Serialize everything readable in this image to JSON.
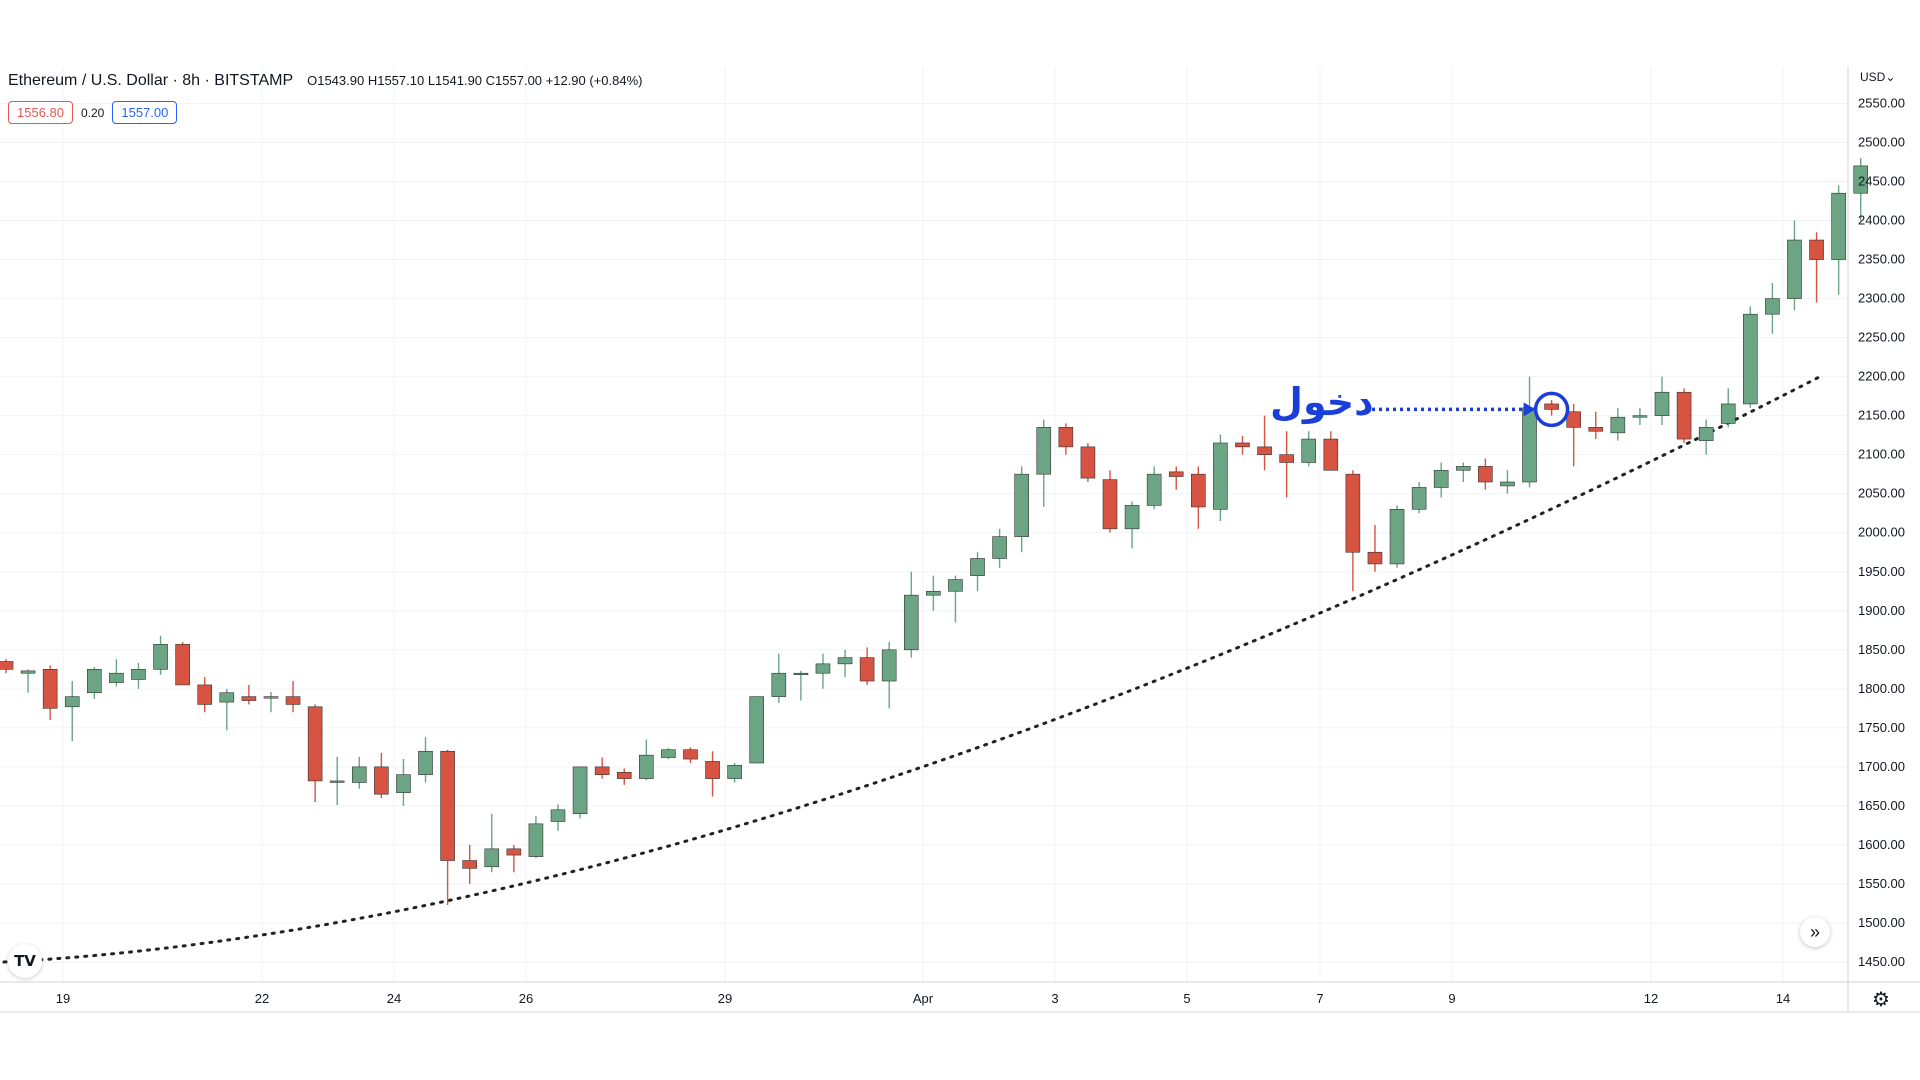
{
  "header": {
    "symbol": "Ethereum / U.S. Dollar · 8h · BITSTAMP",
    "ohlc": "O1543.90 H1557.10 L1541.90 C1557.00 +12.90 (+0.84%)",
    "bid": "1556.80",
    "spread": "0.20",
    "ask": "1557.00",
    "currency": "USD⌄"
  },
  "annotation": {
    "entry_label": "دخول"
  },
  "colors": {
    "up": "#6ba583",
    "down": "#d75442",
    "wick": "#5b5b5b",
    "grid": "#f0f3fa",
    "arrow": "#1a3fd9"
  },
  "icons": {
    "settings": "gear-icon",
    "scroll": "double-chevron-right-icon",
    "logo": "tradingview-logo"
  },
  "chart_data": {
    "type": "candlestick",
    "title": "Ethereum / U.S. Dollar · 8h · BITSTAMP",
    "ylim": [
      1425,
      2570
    ],
    "y_ticks": [
      1450,
      1500,
      1550,
      1600,
      1650,
      1700,
      1750,
      1800,
      1850,
      1900,
      1950,
      2000,
      2050,
      2100,
      2150,
      2200,
      2250,
      2300,
      2350,
      2400,
      2450,
      2500,
      2550
    ],
    "x_ticks": [
      "19",
      "22",
      "24",
      "26",
      "29",
      "Apr",
      "3",
      "5",
      "7",
      "9",
      "12",
      "14"
    ],
    "candles": [
      [
        1835,
        1838,
        1820,
        1825
      ],
      [
        1820,
        1825,
        1795,
        1823
      ],
      [
        1825,
        1830,
        1760,
        1775
      ],
      [
        1777,
        1810,
        1733,
        1790
      ],
      [
        1795,
        1828,
        1787,
        1825
      ],
      [
        1808,
        1838,
        1803,
        1820
      ],
      [
        1812,
        1833,
        1800,
        1825
      ],
      [
        1825,
        1868,
        1818,
        1857
      ],
      [
        1857,
        1860,
        1805,
        1805
      ],
      [
        1805,
        1815,
        1770,
        1780
      ],
      [
        1783,
        1800,
        1747,
        1795
      ],
      [
        1790,
        1805,
        1780,
        1785
      ],
      [
        1788,
        1796,
        1770,
        1790
      ],
      [
        1790,
        1810,
        1770,
        1780
      ],
      [
        1777,
        1780,
        1655,
        1682
      ],
      [
        1682,
        1713,
        1651,
        1682
      ],
      [
        1680,
        1713,
        1672,
        1700
      ],
      [
        1700,
        1718,
        1660,
        1665
      ],
      [
        1667,
        1710,
        1650,
        1690
      ],
      [
        1690,
        1738,
        1680,
        1720
      ],
      [
        1720,
        1722,
        1523,
        1580
      ],
      [
        1580,
        1600,
        1550,
        1570
      ],
      [
        1572,
        1640,
        1565,
        1595
      ],
      [
        1595,
        1600,
        1565,
        1587
      ],
      [
        1585,
        1637,
        1583,
        1627
      ],
      [
        1630,
        1652,
        1618,
        1645
      ],
      [
        1640,
        1700,
        1634,
        1700
      ],
      [
        1700,
        1712,
        1685,
        1690
      ],
      [
        1693,
        1698,
        1677,
        1685
      ],
      [
        1685,
        1735,
        1683,
        1715
      ],
      [
        1712,
        1724,
        1710,
        1722
      ],
      [
        1722,
        1725,
        1705,
        1710
      ],
      [
        1707,
        1720,
        1662,
        1685
      ],
      [
        1685,
        1705,
        1680,
        1702
      ],
      [
        1705,
        1790,
        1705,
        1790
      ],
      [
        1790,
        1845,
        1782,
        1820
      ],
      [
        1820,
        1823,
        1785,
        1820
      ],
      [
        1820,
        1845,
        1800,
        1832
      ],
      [
        1832,
        1850,
        1815,
        1840
      ],
      [
        1840,
        1853,
        1805,
        1810
      ],
      [
        1810,
        1860,
        1775,
        1850
      ],
      [
        1850,
        1950,
        1840,
        1920
      ],
      [
        1920,
        1945,
        1900,
        1925
      ],
      [
        1925,
        1945,
        1885,
        1940
      ],
      [
        1945,
        1975,
        1925,
        1967
      ],
      [
        1967,
        2005,
        1955,
        1995
      ],
      [
        1995,
        2085,
        1975,
        2075
      ],
      [
        2075,
        2145,
        2033,
        2135
      ],
      [
        2135,
        2140,
        2100,
        2110
      ],
      [
        2110,
        2115,
        2065,
        2070
      ],
      [
        2068,
        2080,
        2000,
        2005
      ],
      [
        2005,
        2040,
        1980,
        2035
      ],
      [
        2035,
        2085,
        2030,
        2075
      ],
      [
        2078,
        2085,
        2055,
        2072
      ],
      [
        2075,
        2085,
        2005,
        2033
      ],
      [
        2030,
        2126,
        2015,
        2115
      ],
      [
        2115,
        2124,
        2100,
        2110
      ],
      [
        2110,
        2150,
        2080,
        2100
      ],
      [
        2100,
        2130,
        2045,
        2090
      ],
      [
        2090,
        2130,
        2085,
        2120
      ],
      [
        2120,
        2130,
        2085,
        2080
      ],
      [
        2075,
        2080,
        1925,
        1975
      ],
      [
        1975,
        2010,
        1950,
        1960
      ],
      [
        1960,
        2035,
        1955,
        2030
      ],
      [
        2030,
        2065,
        2025,
        2058
      ],
      [
        2058,
        2090,
        2045,
        2080
      ],
      [
        2080,
        2090,
        2065,
        2085
      ],
      [
        2085,
        2095,
        2055,
        2065
      ],
      [
        2060,
        2080,
        2050,
        2065
      ],
      [
        2065,
        2200,
        2058,
        2160
      ],
      [
        2165,
        2170,
        2150,
        2158
      ],
      [
        2155,
        2165,
        2085,
        2135
      ],
      [
        2135,
        2155,
        2120,
        2130
      ],
      [
        2128,
        2160,
        2118,
        2148
      ],
      [
        2148,
        2160,
        2138,
        2150
      ],
      [
        2150,
        2200,
        2138,
        2180
      ],
      [
        2180,
        2185,
        2115,
        2120
      ],
      [
        2118,
        2145,
        2100,
        2135
      ],
      [
        2140,
        2185,
        2135,
        2165
      ],
      [
        2165,
        2290,
        2160,
        2280
      ],
      [
        2280,
        2320,
        2255,
        2300
      ],
      [
        2300,
        2400,
        2285,
        2375
      ],
      [
        2375,
        2385,
        2295,
        2350
      ],
      [
        2350,
        2445,
        2305,
        2435
      ],
      [
        2435,
        2480,
        2400,
        2470
      ]
    ],
    "trendline": {
      "style": "dotted",
      "from_price": 1450,
      "to_price": 2200
    },
    "annotations": [
      {
        "text": "دخول",
        "at_price": 2158
      }
    ]
  }
}
